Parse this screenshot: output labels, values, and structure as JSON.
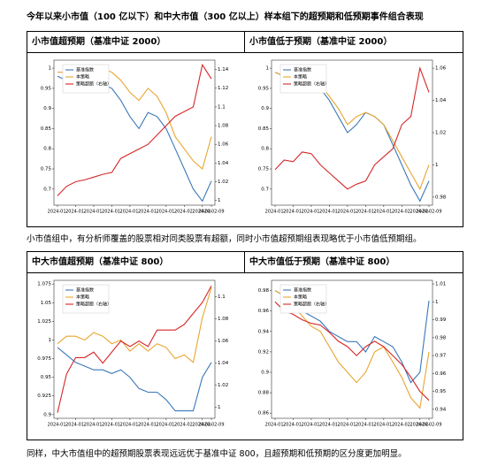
{
  "title": "今年以来小市值（100 亿以下）和中大市值（300 亿以上）样本组下的超预期和低预期事件组合表现",
  "panels": [
    {
      "headings": [
        "小市值超预期（基准中证 2000）",
        "小市值低于预期（基准中证 2000）"
      ]
    },
    {
      "headings": [
        "中大市值超预期（基准中证 800）",
        "中大市值低于预期（基准中证 800）"
      ]
    }
  ],
  "paragraphs": [
    "小市值组中，有分析师覆盖的股票相对同类股票有超额，同时小市值超预期组表现略优于小市值低预期组。",
    "同样，中大市值组中的超预期股票表现远远优于基准中证 800，且超预期和低预期的区分度更加明显。"
  ],
  "chart_data": [
    {
      "type": "line",
      "categories": [
        "2024-01-",
        null,
        "2024-01-",
        null,
        "2024-01-",
        null,
        "2024-01-",
        null,
        "2024-01-",
        null,
        "2024-01-",
        null,
        "2024-01-",
        null,
        "2024-02-",
        null,
        "2024-02-",
        "2024-02-09"
      ],
      "ylim": [
        0.66,
        1.02
      ],
      "yticks": [
        0.7,
        0.75,
        0.8,
        0.85,
        0.9,
        0.95,
        1.0
      ],
      "y2lim": [
        0.995,
        1.15
      ],
      "y2ticks": [
        1.0,
        1.02,
        1.04,
        1.06,
        1.08,
        1.1,
        1.12,
        1.14
      ],
      "series": [
        {
          "name": "基准指数",
          "color": "#3a78b8",
          "values": [
            0.98,
            0.97,
            0.96,
            0.97,
            0.96,
            0.96,
            0.95,
            0.92,
            0.88,
            0.85,
            0.89,
            0.88,
            0.85,
            0.8,
            0.75,
            0.7,
            0.67,
            0.72
          ]
        },
        {
          "name": "本策略",
          "color": "#e8a530",
          "values": [
            0.99,
            0.99,
            0.98,
            0.99,
            0.98,
            1.0,
            0.99,
            0.97,
            0.94,
            0.92,
            0.95,
            0.93,
            0.89,
            0.83,
            0.8,
            0.77,
            0.75,
            0.83
          ]
        },
        {
          "name": "策略超额（右轴）",
          "color": "#d62728",
          "axis": "y2",
          "values": [
            1.005,
            1.015,
            1.02,
            1.022,
            1.025,
            1.028,
            1.03,
            1.045,
            1.05,
            1.055,
            1.06,
            1.07,
            1.08,
            1.09,
            1.095,
            1.1,
            1.145,
            1.13
          ]
        }
      ]
    },
    {
      "type": "line",
      "categories": [
        "2024-01-",
        null,
        "2024-01-",
        null,
        "2024-01-",
        null,
        "2024-01-",
        null,
        "2024-01-",
        null,
        "2024-01-",
        null,
        "2024-01-",
        null,
        "2024-02-",
        null,
        "2024-02-",
        "2024-02-09"
      ],
      "ylim": [
        0.66,
        1.02
      ],
      "yticks": [
        0.7,
        0.75,
        0.8,
        0.85,
        0.9,
        0.95,
        1.0
      ],
      "y2lim": [
        0.975,
        1.065
      ],
      "y2ticks": [
        0.98,
        1.0,
        1.02,
        1.04,
        1.06
      ],
      "series": [
        {
          "name": "基准指数",
          "color": "#3a78b8",
          "values": [
            0.99,
            0.98,
            0.97,
            0.97,
            0.96,
            0.95,
            0.92,
            0.88,
            0.84,
            0.86,
            0.89,
            0.88,
            0.86,
            0.81,
            0.76,
            0.71,
            0.67,
            0.72
          ]
        },
        {
          "name": "本策略",
          "color": "#e8a530",
          "values": [
            0.99,
            0.98,
            0.97,
            0.97,
            0.97,
            0.96,
            0.93,
            0.9,
            0.86,
            0.88,
            0.89,
            0.88,
            0.86,
            0.82,
            0.78,
            0.74,
            0.7,
            0.76
          ]
        },
        {
          "name": "策略超额（右轴）",
          "color": "#d62728",
          "axis": "y2",
          "values": [
            0.997,
            1.003,
            1.002,
            1.008,
            1.007,
            1.0,
            0.995,
            0.99,
            0.985,
            0.988,
            0.99,
            1.0,
            1.005,
            1.01,
            1.025,
            1.03,
            1.06,
            1.045
          ]
        }
      ]
    },
    {
      "type": "line",
      "categories": [
        "2024-01-",
        null,
        "2024-01-",
        null,
        "2024-01-",
        null,
        "2024-01-",
        null,
        "2024-01-",
        null,
        "2024-01-",
        null,
        "2024-01-",
        null,
        "2024-02-",
        null,
        "2024-02-",
        "2024-02-09"
      ],
      "ylim": [
        0.895,
        1.08
      ],
      "yticks": [
        0.9,
        0.925,
        0.95,
        0.975,
        1.0,
        1.025,
        1.05,
        1.075
      ],
      "y2lim": [
        0.99,
        1.115
      ],
      "y2ticks": [
        1.0,
        1.02,
        1.04,
        1.06,
        1.08,
        1.1
      ],
      "series": [
        {
          "name": "基准指数",
          "color": "#3a78b8",
          "values": [
            0.99,
            0.98,
            0.97,
            0.965,
            0.96,
            0.96,
            0.955,
            0.96,
            0.95,
            0.935,
            0.93,
            0.93,
            0.92,
            0.905,
            0.905,
            0.905,
            0.95,
            0.97
          ]
        },
        {
          "name": "本策略",
          "color": "#e8a530",
          "values": [
            0.995,
            1.005,
            1.005,
            1.0,
            1.01,
            1.005,
            0.995,
            1.0,
            0.985,
            0.995,
            0.985,
            0.995,
            0.99,
            0.975,
            0.98,
            0.97,
            1.03,
            1.07
          ]
        },
        {
          "name": "策略超额（右轴）",
          "color": "#d62728",
          "axis": "y2",
          "values": [
            0.995,
            1.03,
            1.045,
            1.045,
            1.05,
            1.04,
            1.05,
            1.06,
            1.055,
            1.06,
            1.055,
            1.07,
            1.07,
            1.07,
            1.075,
            1.085,
            1.095,
            1.11
          ]
        }
      ]
    },
    {
      "type": "line",
      "categories": [
        "2024-01-",
        null,
        "2024-01-",
        null,
        "2024-01-",
        null,
        "2024-01-",
        null,
        "2024-01-",
        null,
        "2024-01-",
        null,
        "2024-01-",
        null,
        "2024-02-",
        null,
        "2024-02-",
        "2024-02-09"
      ],
      "ylim": [
        0.855,
        0.99
      ],
      "yticks": [
        0.86,
        0.88,
        0.9,
        0.92,
        0.94,
        0.96,
        0.98
      ],
      "y2lim": [
        0.935,
        1.012
      ],
      "y2ticks": [
        0.94,
        0.95,
        0.96,
        0.97,
        0.98,
        0.99,
        1.0,
        1.01
      ],
      "series": [
        {
          "name": "基准指数",
          "color": "#3a78b8",
          "values": [
            0.98,
            0.975,
            0.97,
            0.96,
            0.955,
            0.95,
            0.94,
            0.935,
            0.93,
            0.93,
            0.92,
            0.935,
            0.93,
            0.925,
            0.91,
            0.89,
            0.9,
            0.97
          ]
        },
        {
          "name": "本策略",
          "color": "#e8a530",
          "values": [
            0.98,
            0.975,
            0.965,
            0.955,
            0.945,
            0.94,
            0.925,
            0.91,
            0.9,
            0.89,
            0.9,
            0.92,
            0.925,
            0.91,
            0.895,
            0.875,
            0.865,
            0.92
          ]
        },
        {
          "name": "策略超额（右轴）",
          "color": "#d62728",
          "axis": "y2",
          "values": [
            1.0,
            0.995,
            0.993,
            0.99,
            0.988,
            0.987,
            0.983,
            0.978,
            0.975,
            0.97,
            0.975,
            0.978,
            0.975,
            0.97,
            0.965,
            0.958,
            0.95,
            0.945
          ]
        }
      ]
    }
  ]
}
